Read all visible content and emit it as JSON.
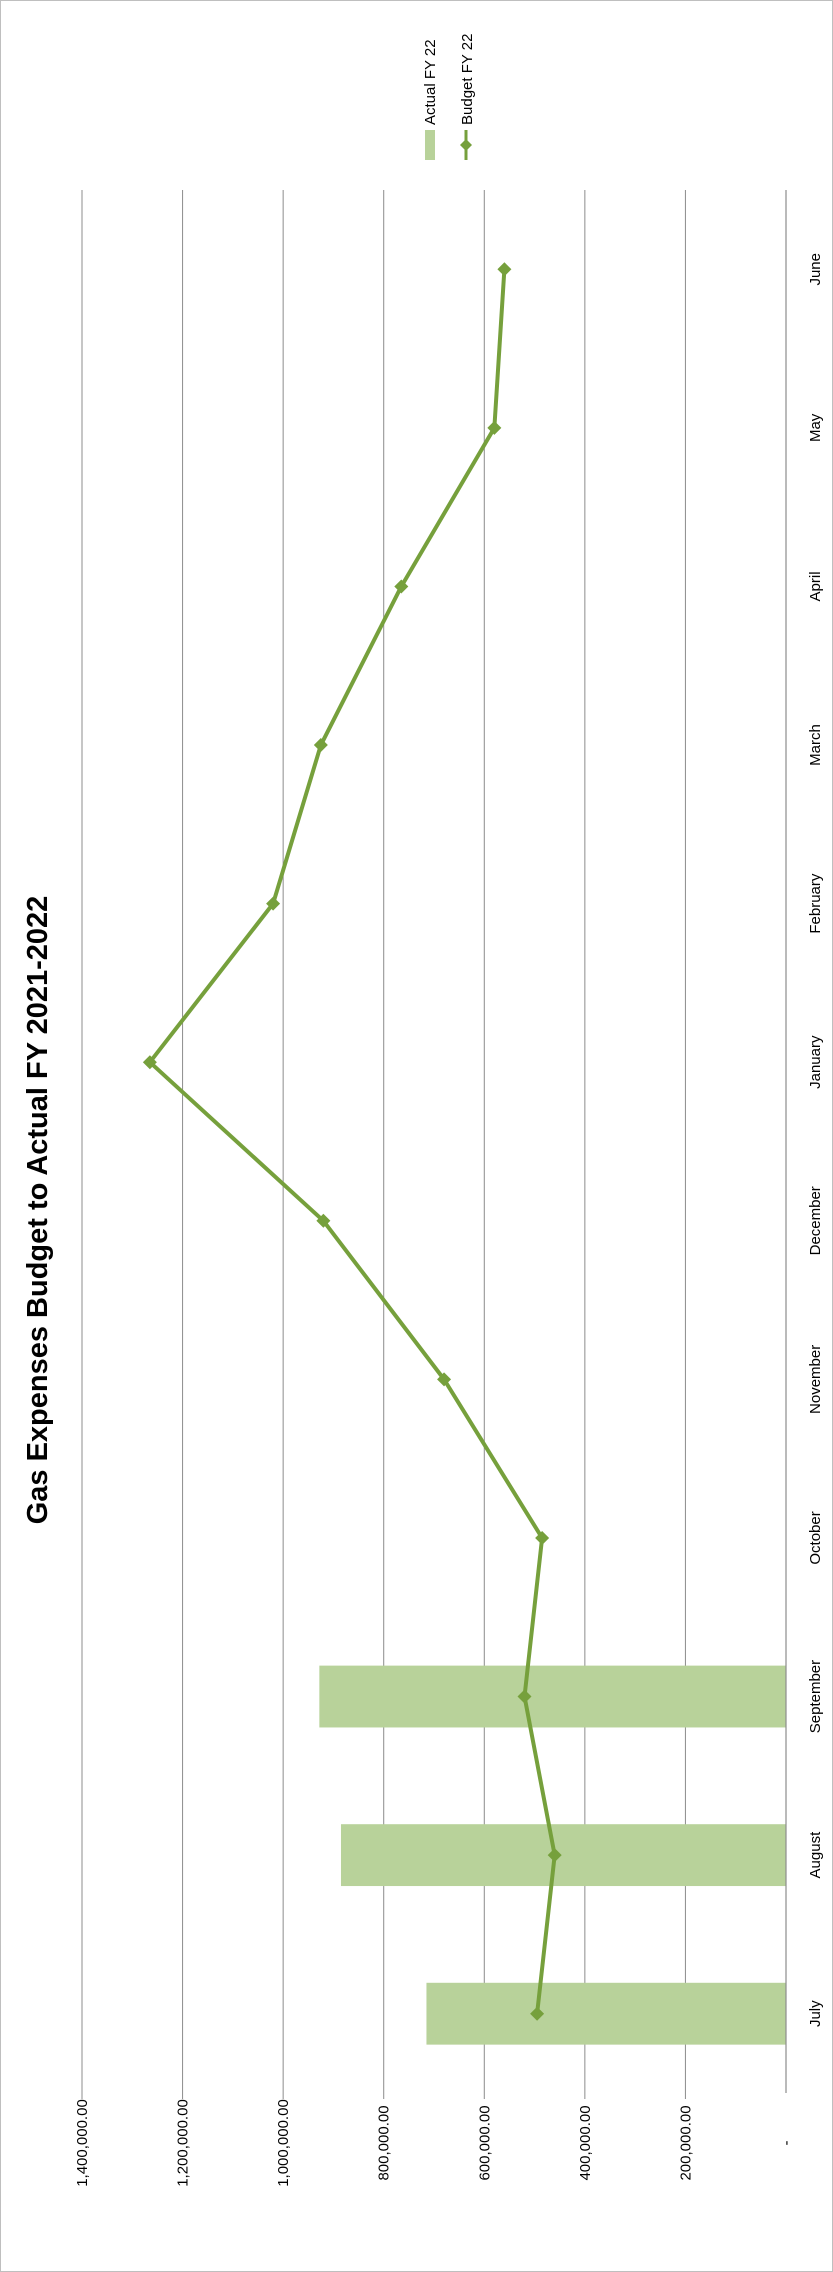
{
  "chart_data": {
    "type": "bar",
    "title": "Gas Expenses Budget to Actual FY 2021-2022",
    "orientation": "rotated-90-clockwise",
    "categories": [
      "July",
      "August",
      "September",
      "October",
      "November",
      "December",
      "January",
      "February",
      "March",
      "April",
      "May",
      "June"
    ],
    "series": [
      {
        "name": "Actual FY 22",
        "kind": "bar",
        "color": "#b8d29a",
        "values": [
          715000,
          885000,
          928000,
          null,
          null,
          null,
          null,
          null,
          null,
          null,
          null,
          null
        ]
      },
      {
        "name": "Budget FY 22",
        "kind": "line",
        "marker": "diamond",
        "color": "#76a03c",
        "values": [
          495000,
          460000,
          520000,
          485000,
          680000,
          920000,
          1265000,
          1020000,
          925000,
          765000,
          580000,
          560000
        ]
      }
    ],
    "y_ticks": [
      "-",
      "200,000.00",
      "400,000.00",
      "600,000.00",
      "800,000.00",
      "1,000,000.00",
      "1,200,000.00",
      "1,400,000.00"
    ],
    "ylim": [
      0,
      1400000
    ],
    "y_step": 200000,
    "grid": true,
    "legend_position": "top-right"
  }
}
